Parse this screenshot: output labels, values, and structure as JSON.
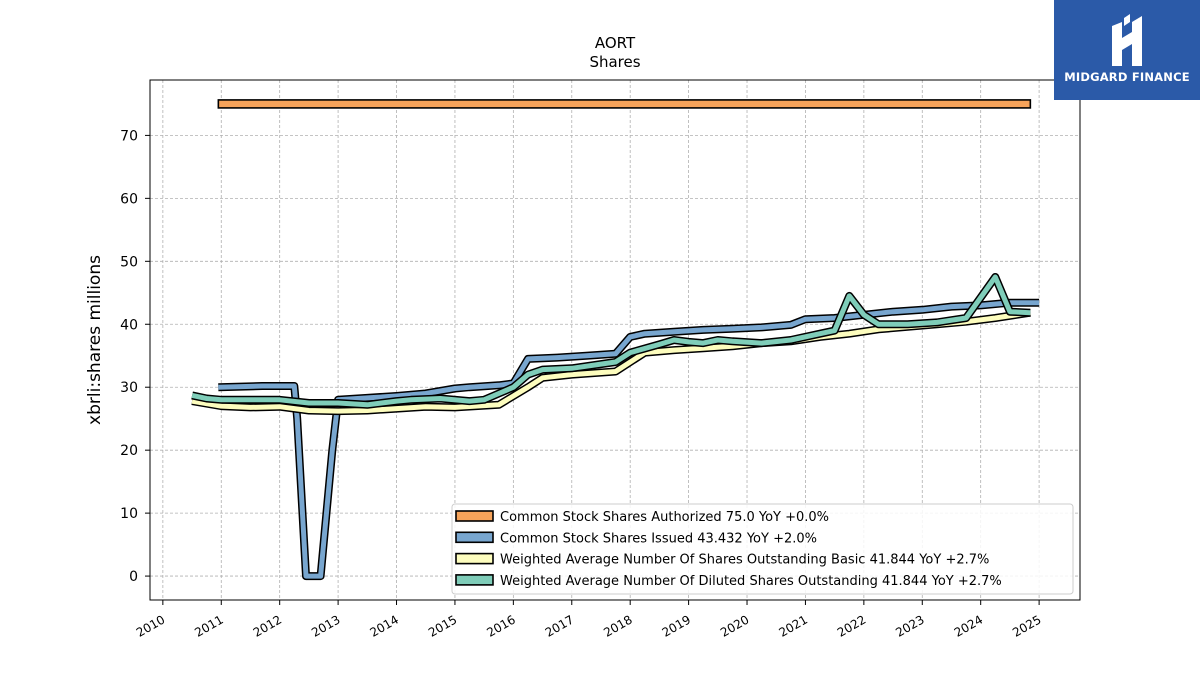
{
  "brand": {
    "name": "MIDGARD FINANCE",
    "bg_color": "#2b5aa8"
  },
  "chart_data": {
    "type": "line",
    "title": "AORT",
    "subtitle": "Shares",
    "ylabel": "xbrli:shares millions",
    "xlabel": "",
    "x_ticks": [
      "2010",
      "2011",
      "2012",
      "2013",
      "2014",
      "2015",
      "2016",
      "2017",
      "2018",
      "2019",
      "2020",
      "2021",
      "2022",
      "2023",
      "2024",
      "2025"
    ],
    "y_ticks": [
      0,
      10,
      20,
      30,
      40,
      50,
      60,
      70
    ],
    "xlim": [
      2009.78,
      2025.7
    ],
    "ylim": [
      -3.8,
      78.8
    ],
    "grid": true,
    "legend_position": "lower right",
    "series": [
      {
        "name": "Common Stock Shares Authorized",
        "legend": "Common Stock Shares Authorized  75.0 YoY +0.0%",
        "color": "#f6a35a",
        "style": "bar",
        "points": [
          [
            2010.95,
            75.0
          ],
          [
            2024.85,
            75.0
          ]
        ]
      },
      {
        "name": "Common Stock Shares Issued",
        "legend": "Common Stock Shares Issued  43.432 YoY +2.0%",
        "color": "#78a6cf",
        "style": "line",
        "points": [
          [
            2010.95,
            30.0
          ],
          [
            2011.7,
            30.2
          ],
          [
            2012.25,
            30.2
          ],
          [
            2012.3,
            25.0
          ],
          [
            2012.45,
            0.0
          ],
          [
            2012.7,
            0.0
          ],
          [
            2012.9,
            20.0
          ],
          [
            2013.0,
            28.0
          ],
          [
            2013.5,
            28.3
          ],
          [
            2014.0,
            28.6
          ],
          [
            2014.5,
            29.0
          ],
          [
            2015.0,
            29.8
          ],
          [
            2015.25,
            30.0
          ],
          [
            2015.75,
            30.3
          ],
          [
            2016.0,
            30.6
          ],
          [
            2016.25,
            34.5
          ],
          [
            2016.75,
            34.7
          ],
          [
            2017.25,
            35.0
          ],
          [
            2017.75,
            35.3
          ],
          [
            2018.0,
            38.0
          ],
          [
            2018.25,
            38.5
          ],
          [
            2018.75,
            38.8
          ],
          [
            2019.25,
            39.1
          ],
          [
            2019.75,
            39.3
          ],
          [
            2020.25,
            39.5
          ],
          [
            2020.75,
            39.9
          ],
          [
            2021.0,
            40.8
          ],
          [
            2021.5,
            41.0
          ],
          [
            2022.0,
            41.5
          ],
          [
            2022.5,
            42.0
          ],
          [
            2023.0,
            42.3
          ],
          [
            2023.5,
            42.8
          ],
          [
            2024.0,
            43.0
          ],
          [
            2024.5,
            43.432
          ],
          [
            2025.0,
            43.432
          ]
        ]
      },
      {
        "name": "Weighted Average Number Of Shares Outstanding Basic",
        "legend": "Weighted Average Number Of Shares Outstanding Basic  41.844 YoY +2.7%",
        "color": "#fdfdbe",
        "style": "line",
        "points": [
          [
            2010.5,
            27.8
          ],
          [
            2011.0,
            27.0
          ],
          [
            2011.5,
            26.8
          ],
          [
            2012.0,
            26.9
          ],
          [
            2012.5,
            26.3
          ],
          [
            2013.0,
            26.2
          ],
          [
            2013.5,
            26.3
          ],
          [
            2014.0,
            26.6
          ],
          [
            2014.5,
            26.9
          ],
          [
            2015.0,
            26.8
          ],
          [
            2015.75,
            27.2
          ],
          [
            2016.25,
            30.0
          ],
          [
            2016.5,
            31.5
          ],
          [
            2017.0,
            32.0
          ],
          [
            2017.75,
            32.5
          ],
          [
            2018.25,
            35.5
          ],
          [
            2018.75,
            35.9
          ],
          [
            2019.25,
            36.2
          ],
          [
            2019.75,
            36.5
          ],
          [
            2020.25,
            37.0
          ],
          [
            2020.75,
            37.3
          ],
          [
            2021.25,
            38.0
          ],
          [
            2021.75,
            38.5
          ],
          [
            2022.25,
            39.2
          ],
          [
            2022.75,
            39.6
          ],
          [
            2023.25,
            40.0
          ],
          [
            2023.75,
            40.4
          ],
          [
            2024.25,
            41.0
          ],
          [
            2024.85,
            41.844
          ]
        ]
      },
      {
        "name": "Weighted Average Number Of Diluted Shares Outstanding",
        "legend": "Weighted Average Number Of Diluted Shares Outstanding  41.844 YoY +2.7%",
        "color": "#7fcdb9",
        "style": "line",
        "points": [
          [
            2010.5,
            28.7
          ],
          [
            2010.75,
            28.2
          ],
          [
            2011.0,
            28.0
          ],
          [
            2011.5,
            28.0
          ],
          [
            2012.0,
            28.0
          ],
          [
            2012.5,
            27.5
          ],
          [
            2013.0,
            27.5
          ],
          [
            2013.5,
            27.2
          ],
          [
            2014.0,
            27.8
          ],
          [
            2014.25,
            28.0
          ],
          [
            2014.75,
            28.2
          ],
          [
            2015.25,
            27.8
          ],
          [
            2015.5,
            28.0
          ],
          [
            2015.75,
            29.0
          ],
          [
            2016.0,
            30.0
          ],
          [
            2016.25,
            32.0
          ],
          [
            2016.5,
            32.8
          ],
          [
            2017.0,
            33.0
          ],
          [
            2017.75,
            34.0
          ],
          [
            2018.0,
            35.5
          ],
          [
            2018.5,
            36.8
          ],
          [
            2018.75,
            37.5
          ],
          [
            2019.0,
            37.2
          ],
          [
            2019.25,
            37.0
          ],
          [
            2019.5,
            37.5
          ],
          [
            2019.75,
            37.3
          ],
          [
            2020.25,
            37.0
          ],
          [
            2020.75,
            37.5
          ],
          [
            2021.25,
            38.5
          ],
          [
            2021.5,
            39.0
          ],
          [
            2021.75,
            44.5
          ],
          [
            2022.0,
            41.5
          ],
          [
            2022.25,
            40.0
          ],
          [
            2022.75,
            40.0
          ],
          [
            2023.25,
            40.3
          ],
          [
            2023.75,
            41.0
          ],
          [
            2024.25,
            47.5
          ],
          [
            2024.5,
            42.0
          ],
          [
            2024.85,
            41.844
          ]
        ]
      }
    ]
  }
}
